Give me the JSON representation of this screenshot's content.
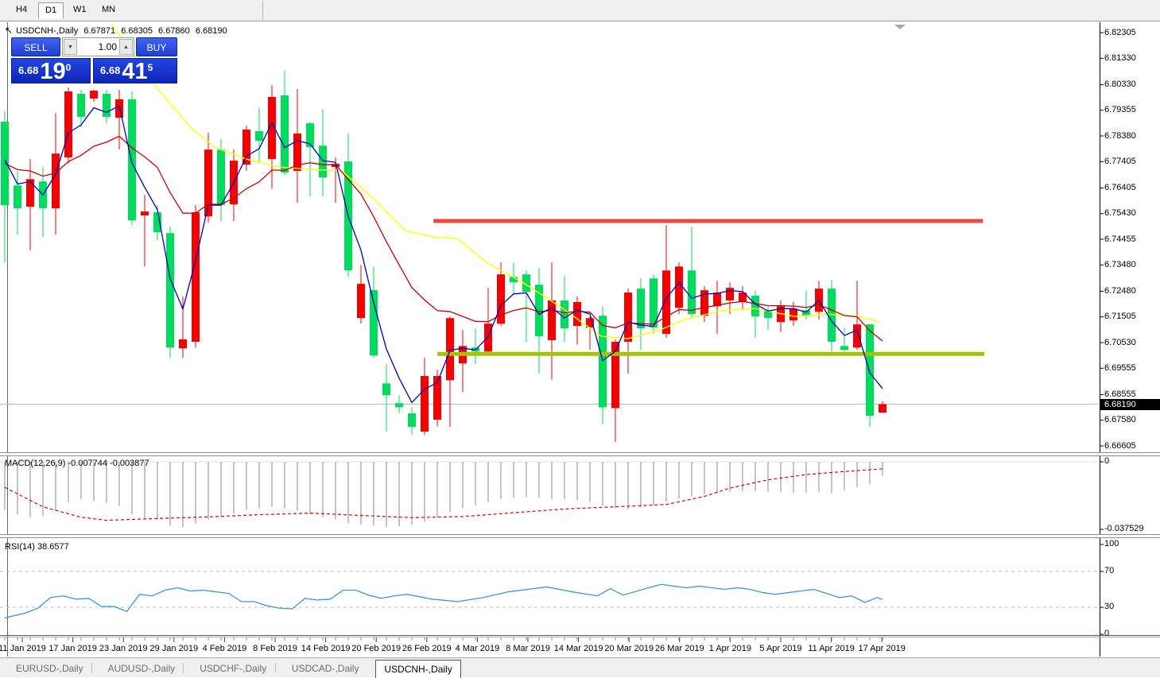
{
  "timeframe_tabs": {
    "items": [
      "H4",
      "D1",
      "W1",
      "MN"
    ],
    "active": "D1"
  },
  "header": {
    "symbol": "USDCNH-,Daily",
    "open": "6.67871",
    "high": "6.68305",
    "low": "6.67860",
    "close": "6.68190"
  },
  "trade_panel": {
    "sell_label": "SELL",
    "buy_label": "BUY",
    "volume": "1.00",
    "sell_big_prefix": "6.68",
    "sell_big": "19",
    "sell_sup": "0",
    "buy_big_prefix": "6.68",
    "buy_big": "41",
    "buy_sup": "5"
  },
  "price_axis": {
    "ticks": [
      "6.82305",
      "6.81330",
      "6.80330",
      "6.79355",
      "6.78380",
      "6.77405",
      "6.76405",
      "6.75430",
      "6.74455",
      "6.73480",
      "6.72480",
      "6.71505",
      "6.70530",
      "6.69555",
      "6.68555",
      "6.67580",
      "6.66605"
    ],
    "current": "6.68190"
  },
  "macd_panel": {
    "label": "MACD(12,26,9)",
    "value1": "-0.007744",
    "value2": "-0.003877",
    "axis_top": "0",
    "axis_bottom": "-0.037529"
  },
  "rsi_panel": {
    "label": "RSI(14)",
    "value": "38.6577",
    "axis": [
      "100",
      "70",
      "30",
      "0"
    ]
  },
  "date_axis": [
    "11 Jan 2019",
    "17 Jan 2019",
    "23 Jan 2019",
    "29 Jan 2019",
    "4 Feb 2019",
    "8 Feb 2019",
    "14 Feb 2019",
    "20 Feb 2019",
    "26 Feb 2019",
    "4 Mar 2019",
    "8 Mar 2019",
    "14 Mar 2019",
    "20 Mar 2019",
    "26 Mar 2019",
    "1 Apr 2019",
    "5 Apr 2019",
    "11 Apr 2019",
    "17 Apr 2019"
  ],
  "symbol_tabs": {
    "items": [
      "EURUSD-,Daily",
      "AUDUSD-,Daily",
      "USDCHF-,Daily",
      "USDCAD-,Daily",
      "USDCNH-,Daily"
    ],
    "active": "USDCNH-,Daily"
  },
  "colors": {
    "candle_red": "#f80000",
    "candle_green": "#00dc5e",
    "ma_blue": "#0000c0",
    "ma_red": "#cc0000",
    "ma_yellow": "#ffff00",
    "hline_red": "#f2453d",
    "hline_olive": "#a4c400",
    "macd_bar": "#c4c4c4",
    "macd_signal": "#dd0000",
    "rsi_line": "#3a97e0",
    "level_dash": "#c0c0c0",
    "current_line": "#bcbcbc",
    "frame": "#666666"
  },
  "chart_data": {
    "type": "candlestick",
    "title": "USDCNH-,Daily",
    "price_range": {
      "top": 6.82305,
      "bottom": 6.66605
    },
    "current_price": 6.6819,
    "candles": [
      [
        6.7892,
        6.7931,
        6.7357,
        6.7575,
        "G"
      ],
      [
        6.765,
        6.7705,
        6.7463,
        6.7563,
        "G"
      ],
      [
        6.7569,
        6.775,
        6.7403,
        6.7674,
        "R"
      ],
      [
        6.7665,
        6.772,
        6.7454,
        6.7563,
        "G"
      ],
      [
        6.7563,
        6.7925,
        6.7463,
        6.7771,
        "R"
      ],
      [
        6.7756,
        6.8022,
        6.7735,
        6.8007,
        "R"
      ],
      [
        6.7998,
        6.8013,
        6.7871,
        6.791,
        "G"
      ],
      [
        6.798,
        6.8013,
        6.7968,
        6.801,
        "R"
      ],
      [
        6.7998,
        6.8013,
        6.7886,
        6.791,
        "G"
      ],
      [
        6.7907,
        6.8013,
        6.7786,
        6.7977,
        "R"
      ],
      [
        6.7977,
        6.8007,
        6.7499,
        6.7517,
        "G"
      ],
      [
        6.7536,
        6.7614,
        6.7342,
        6.7551,
        "R"
      ],
      [
        6.7548,
        6.7575,
        6.7442,
        6.7472,
        "G"
      ],
      [
        6.7469,
        6.7493,
        6.6995,
        6.7034,
        "G"
      ],
      [
        6.7031,
        6.7228,
        6.6995,
        6.7065,
        "R"
      ],
      [
        6.7056,
        6.7575,
        6.7034,
        6.7548,
        "R"
      ],
      [
        6.7532,
        6.785,
        6.7508,
        6.7786,
        "R"
      ],
      [
        6.7786,
        6.7826,
        6.7514,
        6.7575,
        "G"
      ],
      [
        6.7578,
        6.7786,
        6.7514,
        6.7744,
        "R"
      ],
      [
        6.7729,
        6.7877,
        6.7705,
        6.7862,
        "R"
      ],
      [
        6.7856,
        6.7946,
        6.7735,
        6.7819,
        "G"
      ],
      [
        6.775,
        6.8031,
        6.7638,
        6.7986,
        "R"
      ],
      [
        6.7992,
        6.8088,
        6.769,
        6.7699,
        "G"
      ],
      [
        6.7705,
        6.8016,
        6.7584,
        6.7847,
        "R"
      ],
      [
        6.7886,
        6.7892,
        6.7608,
        6.7795,
        "G"
      ],
      [
        6.7801,
        6.794,
        6.7608,
        6.768,
        "G"
      ],
      [
        6.772,
        6.7756,
        6.7584,
        6.7732,
        "R"
      ],
      [
        6.7741,
        6.7847,
        6.7303,
        6.7327,
        "G"
      ],
      [
        6.7146,
        6.7348,
        6.7125,
        6.7276,
        "R"
      ],
      [
        6.7252,
        6.7342,
        6.6995,
        6.7004,
        "G"
      ],
      [
        6.6898,
        6.6971,
        6.6715,
        6.6853,
        "G"
      ],
      [
        6.6823,
        6.6853,
        6.6784,
        6.6807,
        "G"
      ],
      [
        6.6784,
        6.6807,
        6.6702,
        6.6733,
        "G"
      ],
      [
        6.6715,
        6.6995,
        6.6702,
        6.6926,
        "R"
      ],
      [
        6.676,
        6.695,
        6.6735,
        6.6926,
        "R"
      ],
      [
        6.691,
        6.7152,
        6.6733,
        6.7146,
        "R"
      ],
      [
        6.6974,
        6.7101,
        6.6865,
        6.704,
        "R"
      ],
      [
        6.7034,
        6.7107,
        6.6971,
        6.7019,
        "G"
      ],
      [
        6.7019,
        6.7261,
        6.701,
        6.7125,
        "R"
      ],
      [
        6.7125,
        6.7357,
        6.7116,
        6.7312,
        "R"
      ],
      [
        6.7303,
        6.7357,
        6.7237,
        6.7282,
        "G"
      ],
      [
        6.7312,
        6.7327,
        6.7056,
        6.7246,
        "G"
      ],
      [
        6.7273,
        6.7336,
        6.6935,
        6.7077,
        "G"
      ],
      [
        6.7062,
        6.7357,
        6.6913,
        6.7213,
        "R"
      ],
      [
        6.7213,
        6.7306,
        6.7056,
        6.7107,
        "G"
      ],
      [
        6.7116,
        6.7228,
        6.7046,
        6.7207,
        "R"
      ],
      [
        6.711,
        6.7152,
        6.7025,
        6.7146,
        "R"
      ],
      [
        6.7155,
        6.7191,
        6.6744,
        6.6807,
        "G"
      ],
      [
        6.6804,
        6.7065,
        6.6675,
        6.7056,
        "R"
      ],
      [
        6.7056,
        6.7258,
        6.6935,
        6.7243,
        "R"
      ],
      [
        6.7258,
        6.7297,
        6.7025,
        6.7107,
        "G"
      ],
      [
        6.7297,
        6.7312,
        6.7086,
        6.711,
        "G"
      ],
      [
        6.7086,
        6.7499,
        6.7071,
        6.7327,
        "R"
      ],
      [
        6.7185,
        6.7357,
        6.7161,
        6.7342,
        "R"
      ],
      [
        6.7327,
        6.7493,
        6.7146,
        6.7161,
        "G"
      ],
      [
        6.7155,
        6.7267,
        6.7131,
        6.7252,
        "R"
      ],
      [
        6.7191,
        6.7288,
        6.7086,
        6.7243,
        "R"
      ],
      [
        6.7213,
        6.7282,
        6.7161,
        6.7261,
        "R"
      ],
      [
        6.7207,
        6.7267,
        6.7176,
        6.7243,
        "R"
      ],
      [
        6.7231,
        6.7252,
        6.7071,
        6.7152,
        "G"
      ],
      [
        6.7176,
        6.7191,
        6.7101,
        6.7146,
        "G"
      ],
      [
        6.7131,
        6.7213,
        6.7092,
        6.7191,
        "R"
      ],
      [
        6.7137,
        6.7207,
        6.7116,
        6.7182,
        "R"
      ],
      [
        6.7176,
        6.7252,
        6.714,
        6.7155,
        "G"
      ],
      [
        6.717,
        6.7288,
        6.714,
        6.7258,
        "R"
      ],
      [
        6.7258,
        6.7291,
        6.7019,
        6.7056,
        "G"
      ],
      [
        6.704,
        6.711,
        6.7019,
        6.7025,
        "G"
      ],
      [
        6.7034,
        6.7288,
        6.7025,
        6.7122,
        "R"
      ],
      [
        6.7122,
        6.7122,
        6.6733,
        6.6775,
        "G"
      ],
      [
        6.67871,
        6.68305,
        6.6786,
        6.6819,
        "R"
      ]
    ],
    "hlines": [
      {
        "price": 6.7515,
        "from_bar": 33.7,
        "to_bar": 76.9,
        "color_key": "hline_red",
        "width": 5
      },
      {
        "price": 6.701,
        "from_bar": 34.0,
        "to_bar": 77.0,
        "color_key": "hline_olive",
        "width": 5
      }
    ],
    "yellow_ma_points": [
      [
        8.4,
        6.8263
      ],
      [
        12.1,
        6.8013
      ],
      [
        14.6,
        6.7871
      ],
      [
        16.5,
        6.7795
      ],
      [
        19,
        6.775
      ],
      [
        21.5,
        6.772
      ],
      [
        24,
        6.7711
      ],
      [
        26.5,
        6.7705
      ],
      [
        29,
        6.7599
      ],
      [
        31.5,
        6.7478
      ],
      [
        33.7,
        6.7454
      ],
      [
        35.6,
        6.7448
      ],
      [
        37.9,
        6.7357
      ],
      [
        40.7,
        6.7282
      ],
      [
        43.8,
        6.7185
      ],
      [
        46.9,
        6.7077
      ],
      [
        49,
        6.7068
      ],
      [
        51.5,
        6.7101
      ],
      [
        53.4,
        6.714
      ],
      [
        56.5,
        6.7176
      ],
      [
        59,
        6.7182
      ],
      [
        62.1,
        6.7152
      ],
      [
        64.6,
        6.7161
      ],
      [
        67.1,
        6.7152
      ],
      [
        68.8,
        6.7131
      ]
    ],
    "macd": {
      "range_min": -0.037529,
      "histogram": [
        -0.0267,
        -0.0292,
        -0.0308,
        -0.03,
        -0.0271,
        -0.0225,
        -0.0208,
        -0.0217,
        -0.0229,
        -0.0246,
        -0.0292,
        -0.0313,
        -0.0321,
        -0.0354,
        -0.0363,
        -0.0342,
        -0.0321,
        -0.03,
        -0.0288,
        -0.0267,
        -0.0258,
        -0.025,
        -0.0258,
        -0.0271,
        -0.0292,
        -0.0308,
        -0.0321,
        -0.0342,
        -0.035,
        -0.0354,
        -0.0363,
        -0.0358,
        -0.035,
        -0.0333,
        -0.0308,
        -0.0279,
        -0.0258,
        -0.0242,
        -0.0225,
        -0.0208,
        -0.02,
        -0.0196,
        -0.02,
        -0.0208,
        -0.0208,
        -0.0213,
        -0.0221,
        -0.0242,
        -0.0258,
        -0.0263,
        -0.0254,
        -0.0242,
        -0.0221,
        -0.0204,
        -0.0192,
        -0.0183,
        -0.0175,
        -0.0167,
        -0.0163,
        -0.0163,
        -0.0167,
        -0.0167,
        -0.0171,
        -0.0171,
        -0.0167,
        -0.0175,
        -0.0158,
        -0.0142,
        -0.0125,
        -0.007744
      ],
      "signal_points": [
        [
          0,
          -0.0142
        ],
        [
          3,
          -0.025
        ],
        [
          6,
          -0.0308
        ],
        [
          8,
          -0.0325
        ],
        [
          12,
          -0.0315
        ],
        [
          16,
          -0.0306
        ],
        [
          20,
          -0.0294
        ],
        [
          24,
          -0.0285
        ],
        [
          28,
          -0.0298
        ],
        [
          32,
          -0.031
        ],
        [
          36,
          -0.0304
        ],
        [
          40,
          -0.0283
        ],
        [
          44,
          -0.0262
        ],
        [
          48,
          -0.025
        ],
        [
          52,
          -0.0237
        ],
        [
          55,
          -0.0192
        ],
        [
          57,
          -0.0146
        ],
        [
          60,
          -0.01
        ],
        [
          63,
          -0.0071
        ],
        [
          66,
          -0.0054
        ],
        [
          69,
          -0.003877
        ]
      ]
    },
    "rsi": {
      "levels": [
        70,
        30
      ],
      "points": [
        [
          0,
          18.2
        ],
        [
          1.6,
          23.6
        ],
        [
          2.6,
          29.1
        ],
        [
          3.6,
          40.9
        ],
        [
          4.6,
          42.7
        ],
        [
          5.6,
          39.1
        ],
        [
          6.6,
          40.0
        ],
        [
          7.6,
          30.9
        ],
        [
          8.6,
          30.9
        ],
        [
          9.6,
          25.5
        ],
        [
          10.6,
          44.5
        ],
        [
          11.6,
          42.7
        ],
        [
          12.6,
          49.1
        ],
        [
          13.6,
          51.8
        ],
        [
          14.6,
          48.2
        ],
        [
          15.6,
          49.1
        ],
        [
          16.6,
          47.3
        ],
        [
          17.6,
          45.5
        ],
        [
          18.6,
          36.4
        ],
        [
          19.6,
          36.4
        ],
        [
          20.6,
          31.8
        ],
        [
          21.6,
          29.1
        ],
        [
          22.6,
          28.2
        ],
        [
          23.6,
          40.0
        ],
        [
          24.6,
          38.2
        ],
        [
          25.6,
          39.1
        ],
        [
          26.6,
          49.1
        ],
        [
          27.6,
          49.1
        ],
        [
          28.6,
          43.6
        ],
        [
          29.6,
          40.0
        ],
        [
          30.6,
          42.7
        ],
        [
          31.6,
          44.5
        ],
        [
          33.6,
          39.1
        ],
        [
          35.6,
          36.4
        ],
        [
          37.6,
          40.9
        ],
        [
          39.6,
          47.3
        ],
        [
          41.6,
          50.9
        ],
        [
          42.6,
          52.7
        ],
        [
          43.6,
          50.0
        ],
        [
          44.6,
          47.3
        ],
        [
          46.6,
          42.7
        ],
        [
          47.6,
          50.9
        ],
        [
          48.6,
          43.6
        ],
        [
          50.6,
          51.8
        ],
        [
          51.6,
          55.5
        ],
        [
          52.6,
          53.6
        ],
        [
          53.6,
          51.8
        ],
        [
          54.6,
          53.6
        ],
        [
          55.6,
          51.8
        ],
        [
          56.6,
          50.0
        ],
        [
          57.6,
          51.8
        ],
        [
          58.6,
          50.0
        ],
        [
          59.6,
          46.4
        ],
        [
          60.6,
          44.5
        ],
        [
          61.6,
          46.4
        ],
        [
          62.6,
          48.2
        ],
        [
          63.6,
          50.0
        ],
        [
          64.6,
          45.5
        ],
        [
          65.6,
          40.9
        ],
        [
          66.6,
          42.7
        ],
        [
          67.6,
          35.5
        ],
        [
          68.6,
          40.9
        ],
        [
          69,
          38.66
        ]
      ]
    }
  }
}
